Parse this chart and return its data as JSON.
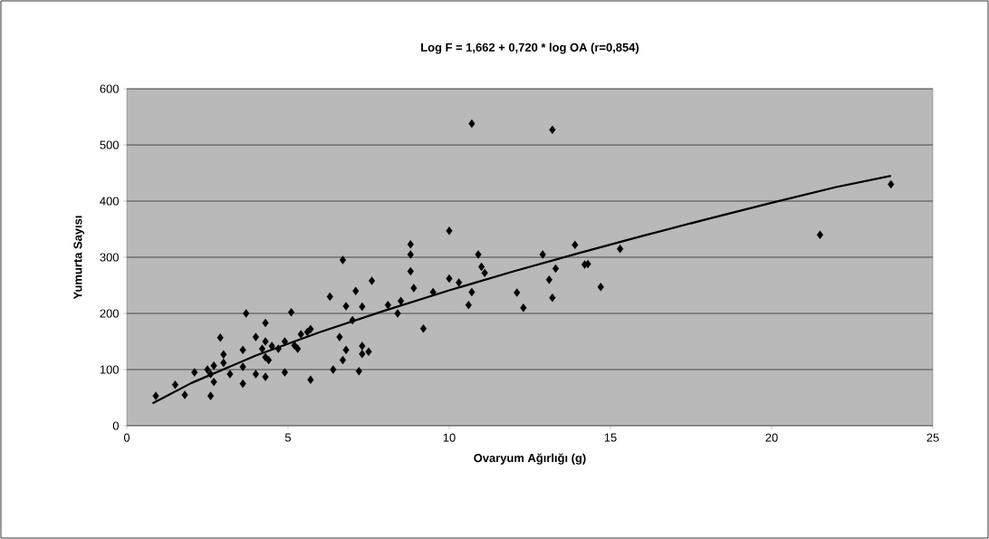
{
  "chart_data": {
    "type": "scatter",
    "title": "Log F = 1,662 + 0,720 * log OA (r=0,854)",
    "xlabel": "Ovaryum Ağırlığı (g)",
    "ylabel": "Yumurta Sayısı",
    "xlim": [
      0,
      25
    ],
    "xticks": [
      0,
      5,
      10,
      15,
      20,
      25
    ],
    "ylim": [
      0,
      600
    ],
    "yticks": [
      0,
      100,
      200,
      300,
      400,
      500,
      600
    ],
    "grid": "y",
    "marker": "diamond",
    "series": [
      {
        "color": "#000000",
        "x": [
          0.9,
          1.5,
          1.8,
          2.6,
          2.1,
          2.5,
          2.6,
          2.7,
          2.7,
          2.9,
          3.0,
          3.0,
          3.2,
          3.6,
          3.6,
          3.6,
          3.7,
          4.0,
          4.0,
          4.3,
          4.3,
          4.3,
          4.4,
          4.9,
          4.9,
          5.1,
          5.3,
          5.4,
          4.7,
          4.2,
          4.3,
          5.7,
          5.6,
          6.6,
          5.2,
          4.5,
          6.8,
          7.3,
          7.5,
          7.3,
          6.7,
          5.7,
          6.4,
          7.2,
          7.0,
          9.2,
          6.3,
          6.8,
          7.3,
          8.1,
          8.5,
          8.4,
          7.1,
          8.9,
          9.5,
          7.6,
          8.8,
          8.8,
          8.8,
          6.7,
          10.0,
          10.9,
          11.0,
          11.1,
          10.0,
          10.3,
          10.7,
          10.6,
          12.1,
          12.3,
          12.9,
          13.9,
          13.3,
          13.1,
          13.2,
          14.2,
          14.3,
          14.7,
          15.3,
          13.2,
          10.7,
          21.5,
          23.7
        ],
        "values": [
          53,
          73,
          55,
          53,
          95,
          100,
          92,
          78,
          107,
          157,
          127,
          112,
          92,
          75,
          105,
          135,
          200,
          158,
          92,
          87,
          183,
          150,
          117,
          95,
          150,
          202,
          137,
          163,
          137,
          137,
          122,
          82,
          167,
          158,
          143,
          142,
          135,
          142,
          132,
          128,
          117,
          172,
          100,
          97,
          188,
          173,
          230,
          213,
          212,
          215,
          222,
          200,
          240,
          245,
          238,
          258,
          323,
          305,
          275,
          295,
          347,
          305,
          283,
          272,
          262,
          255,
          238,
          215,
          237,
          210,
          305,
          322,
          280,
          260,
          228,
          287,
          288,
          247,
          315,
          527,
          538,
          340,
          430
        ]
      },
      {
        "type": "line",
        "color": "#000000",
        "marker": "none",
        "x": [
          0.8,
          2,
          4,
          6,
          8,
          10,
          12,
          14,
          16,
          18,
          20,
          22,
          23.7
        ],
        "values": [
          40,
          76,
          125,
          167,
          205,
          241,
          275,
          307,
          338,
          368,
          397,
          425,
          445
        ]
      }
    ]
  }
}
